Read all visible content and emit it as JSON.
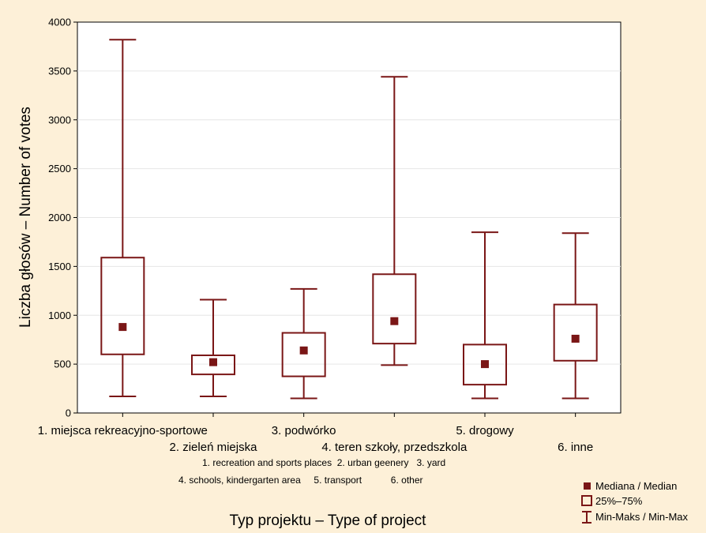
{
  "chart_data": {
    "type": "boxplot",
    "ylabel": "Liczba głosów – Number of votes",
    "xlabel": "Typ projektu – Type of project",
    "ylim": [
      0,
      4000
    ],
    "yticks": [
      0,
      500,
      1000,
      1500,
      2000,
      2500,
      3000,
      3500,
      4000
    ],
    "grid": true,
    "categories": [
      "1. miejsca rekreacyjno-sportowe",
      "2. zieleń miejska",
      "3. podwórko",
      "4. teren szkoły, przedszkola",
      "5. drogowy",
      "6. inne"
    ],
    "subcaption": [
      "1. recreation and sports places  2. urban geenery   3. yard",
      "4. schools, kindergarten area     5. transport           6. other"
    ],
    "series": [
      {
        "category": "1. miejsca rekreacyjno-sportowe",
        "min": 170,
        "q1": 600,
        "median": 880,
        "q3": 1590,
        "max": 3820
      },
      {
        "category": "2. zieleń miejska",
        "min": 170,
        "q1": 395,
        "median": 520,
        "q3": 590,
        "max": 1160
      },
      {
        "category": "3. podwórko",
        "min": 150,
        "q1": 375,
        "median": 640,
        "q3": 820,
        "max": 1270
      },
      {
        "category": "4. teren szkoły, przedszkola",
        "min": 490,
        "q1": 710,
        "median": 940,
        "q3": 1420,
        "max": 3440
      },
      {
        "category": "5. drogowy",
        "min": 150,
        "q1": 290,
        "median": 500,
        "q3": 700,
        "max": 1850
      },
      {
        "category": "6. inne",
        "min": 150,
        "q1": 535,
        "median": 760,
        "q3": 1110,
        "max": 1840
      }
    ],
    "legend": {
      "position": "bottom-right",
      "items": [
        "Mediana / Median",
        "25%–75%",
        "Min-Maks / Min-Max"
      ]
    },
    "colors": {
      "box": "#7a1616",
      "median": "#7a1616",
      "grid": "#e6e6e6",
      "background": "#fdf0d8",
      "plot": "#ffffff"
    }
  }
}
